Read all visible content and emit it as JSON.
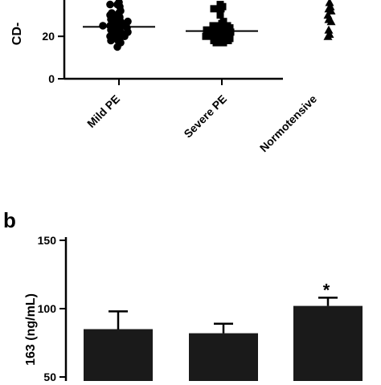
{
  "chart_data": [
    {
      "type": "scatter",
      "panel_label": "",
      "ylabel": "CD-",
      "yticks": [
        0,
        20
      ],
      "ylim": [
        0,
        38
      ],
      "categories": [
        "Mild PE",
        "Severe PE",
        "Normotensive"
      ],
      "groups": [
        {
          "name": "Mild PE",
          "marker": "circle",
          "mean": 24.5,
          "values": [
            36,
            35,
            35,
            34,
            32,
            31,
            31,
            30,
            30,
            29,
            29,
            28,
            28,
            27,
            27,
            27,
            26,
            26,
            26,
            25,
            25,
            25,
            25,
            24,
            24,
            24,
            23,
            23,
            22,
            22,
            22,
            21,
            21,
            20,
            20,
            20,
            19,
            19,
            18,
            18,
            17,
            15
          ]
        },
        {
          "name": "Severe PE",
          "marker": "square",
          "mean": 22.5,
          "values": [
            35,
            34,
            33,
            33,
            30,
            27,
            26,
            25,
            25,
            25,
            24,
            24,
            24,
            23,
            23,
            23,
            23,
            22,
            22,
            22,
            22,
            21,
            21,
            21,
            21,
            20,
            20,
            20,
            20,
            19,
            19,
            19,
            18,
            18,
            18,
            17,
            17
          ]
        },
        {
          "name": "Normotensive",
          "marker": "triangle",
          "values": [
            36,
            34,
            33,
            32,
            30,
            28,
            27,
            23,
            21,
            20
          ]
        }
      ]
    },
    {
      "type": "bar",
      "panel_label": "b",
      "ylabel": "163 (ng/mL)",
      "categories": [
        "",
        "",
        ""
      ],
      "values": [
        85,
        82,
        102
      ],
      "errors": [
        13,
        7,
        6
      ],
      "annotations": [
        "",
        "",
        "*"
      ],
      "yticks": [
        50,
        100,
        150
      ],
      "ylim": [
        50,
        150
      ]
    }
  ]
}
